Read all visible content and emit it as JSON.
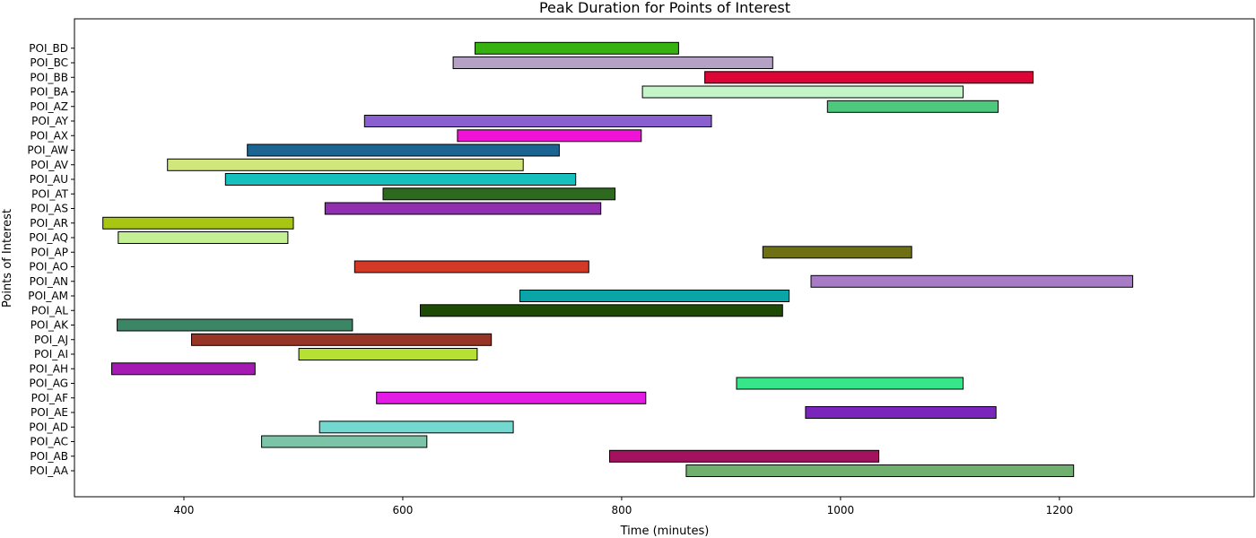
{
  "chart_data": {
    "type": "bar",
    "orientation": "horizontal-range",
    "title": "Peak Duration for Points of Interest",
    "xlabel": "Time (minutes)",
    "ylabel": "Points of Interest",
    "xlim": [
      300,
      1378
    ],
    "xticks": [
      400,
      600,
      800,
      1000,
      1200
    ],
    "grid": false,
    "bars": [
      {
        "label": "POI_AA",
        "start": 859,
        "end": 1213,
        "color": "#6fb06f"
      },
      {
        "label": "POI_AB",
        "start": 789,
        "end": 1035,
        "color": "#a3115f"
      },
      {
        "label": "POI_AC",
        "start": 471,
        "end": 622,
        "color": "#7cc4a7"
      },
      {
        "label": "POI_AD",
        "start": 524,
        "end": 701,
        "color": "#72d8d0"
      },
      {
        "label": "POI_AE",
        "start": 968,
        "end": 1142,
        "color": "#7a26bd"
      },
      {
        "label": "POI_AF",
        "start": 576,
        "end": 822,
        "color": "#e21ce4"
      },
      {
        "label": "POI_AG",
        "start": 905,
        "end": 1112,
        "color": "#38e68a"
      },
      {
        "label": "POI_AH",
        "start": 334,
        "end": 465,
        "color": "#a41ab3"
      },
      {
        "label": "POI_AI",
        "start": 505,
        "end": 668,
        "color": "#b6e033"
      },
      {
        "label": "POI_AJ",
        "start": 407,
        "end": 681,
        "color": "#963526"
      },
      {
        "label": "POI_AK",
        "start": 339,
        "end": 554,
        "color": "#3b8664"
      },
      {
        "label": "POI_AL",
        "start": 616,
        "end": 947,
        "color": "#1d4a05"
      },
      {
        "label": "POI_AM",
        "start": 707,
        "end": 953,
        "color": "#0aa6a7"
      },
      {
        "label": "POI_AN",
        "start": 973,
        "end": 1267,
        "color": "#a87bc6"
      },
      {
        "label": "POI_AO",
        "start": 556,
        "end": 770,
        "color": "#d23a27"
      },
      {
        "label": "POI_AP",
        "start": 929,
        "end": 1065,
        "color": "#6f7014"
      },
      {
        "label": "POI_AQ",
        "start": 340,
        "end": 495,
        "color": "#c3f092"
      },
      {
        "label": "POI_AR",
        "start": 326,
        "end": 500,
        "color": "#a8c512"
      },
      {
        "label": "POI_AS",
        "start": 529,
        "end": 781,
        "color": "#922fb1"
      },
      {
        "label": "POI_AT",
        "start": 582,
        "end": 794,
        "color": "#2e6a1e"
      },
      {
        "label": "POI_AU",
        "start": 438,
        "end": 758,
        "color": "#16c0bd"
      },
      {
        "label": "POI_AV",
        "start": 385,
        "end": 710,
        "color": "#d1e67b"
      },
      {
        "label": "POI_AW",
        "start": 458,
        "end": 743,
        "color": "#1c6593"
      },
      {
        "label": "POI_AX",
        "start": 650,
        "end": 818,
        "color": "#ee13d6"
      },
      {
        "label": "POI_AY",
        "start": 565,
        "end": 882,
        "color": "#8a5fcf"
      },
      {
        "label": "POI_AZ",
        "start": 988,
        "end": 1144,
        "color": "#4cc97d"
      },
      {
        "label": "POI_BA",
        "start": 819,
        "end": 1112,
        "color": "#c3f5c8"
      },
      {
        "label": "POI_BB",
        "start": 876,
        "end": 1176,
        "color": "#dc0536"
      },
      {
        "label": "POI_BC",
        "start": 646,
        "end": 938,
        "color": "#b6a1c6"
      },
      {
        "label": "POI_BD",
        "start": 666,
        "end": 852,
        "color": "#37b10f"
      }
    ]
  }
}
